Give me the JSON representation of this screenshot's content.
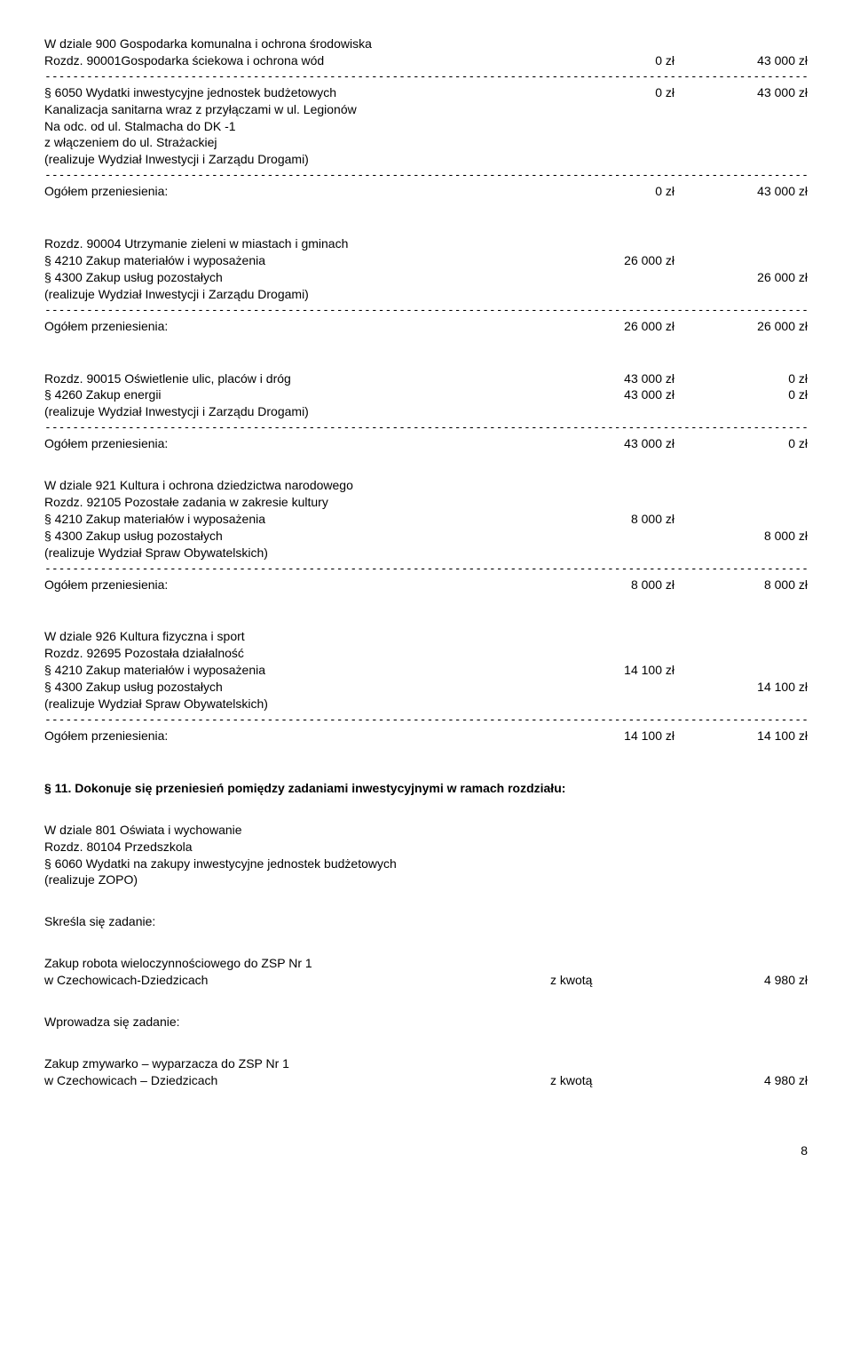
{
  "dash_line": "-----------------------------------------------------------------------------------------------------------------------------------",
  "s1": {
    "title1": "W dziale 900 Gospodarka komunalna i ochrona środowiska",
    "row1_l": "Rozdz. 90001Gospodarka ściekowa i ochrona wód",
    "row1_m": "0 zł",
    "row1_r": "43 000 zł",
    "row2_l": "§ 6050 Wydatki inwestycyjne jednostek budżetowych",
    "row2_m": "0 zł",
    "row2_r": "43 000 zł",
    "l3": "Kanalizacja sanitarna wraz z przyłączami w ul. Legionów",
    "l4": "Na odc. od ul. Stalmacha do DK -1",
    "l5": "z włączeniem do ul. Strażackiej",
    "l6": "(realizuje Wydział Inwestycji i Zarządu Drogami)",
    "total_l": "Ogółem przeniesienia:",
    "total_m": "0 zł",
    "total_r": "43 000 zł"
  },
  "s2": {
    "l1": "Rozdz. 90004 Utrzymanie zieleni w miastach i gminach",
    "row2_l": "§ 4210 Zakup materiałów i wyposażenia",
    "row2_m": "26 000 zł",
    "row3_l": "§ 4300 Zakup usług pozostałych",
    "row3_r": "26 000 zł",
    "l4": "(realizuje Wydział Inwestycji i Zarządu Drogami)",
    "total_l": "Ogółem przeniesienia:",
    "total_m": "26 000 zł",
    "total_r": "26 000 zł"
  },
  "s3": {
    "row1_l": "Rozdz. 90015 Oświetlenie ulic, placów i dróg",
    "row1_m": "43 000 zł",
    "row1_r": "0 zł",
    "row2_l": "§ 4260 Zakup energii",
    "row2_m": "43 000 zł",
    "row2_r": "0 zł",
    "l3": "(realizuje Wydział Inwestycji i Zarządu Drogami)",
    "total_l": "Ogółem przeniesienia:",
    "total_m": "43 000 zł",
    "total_r": "0 zł"
  },
  "s4": {
    "l1": "W dziale 921 Kultura i ochrona dziedzictwa narodowego",
    "l2": "Rozdz. 92105 Pozostałe zadania w zakresie kultury",
    "row3_l": "§ 4210 Zakup materiałów i wyposażenia",
    "row3_m": "8 000 zł",
    "row4_l": "§ 4300 Zakup usług pozostałych",
    "row4_r": "8 000 zł",
    "l5": "(realizuje Wydział Spraw Obywatelskich)",
    "total_l": "Ogółem przeniesienia:",
    "total_m": "8 000 zł",
    "total_r": "8 000 zł"
  },
  "s5": {
    "l1": "W dziale 926 Kultura fizyczna i sport",
    "l2": "Rozdz. 92695 Pozostała działalność",
    "row3_l": "§ 4210 Zakup materiałów i wyposażenia",
    "row3_m": "14 100 zł",
    "row4_l": "§ 4300 Zakup usług pozostałych",
    "row4_r": "14 100 zł",
    "l5": "(realizuje Wydział Spraw Obywatelskich)",
    "total_l": "Ogółem przeniesienia:",
    "total_m": "14 100 zł",
    "total_r": "14 100 zł"
  },
  "s6": {
    "p11": "§ 11.  Dokonuje się przeniesień pomiędzy zadaniami inwestycyjnymi w ramach rozdziału:",
    "l1": "W dziale 801 Oświata i wychowanie",
    "l2": "Rozdz. 80104 Przedszkola",
    "l3": "§ 6060 Wydatki na zakupy inwestycyjne jednostek budżetowych",
    "l4": "(realizuje ZOPO)",
    "skresla": "Skreśla się zadanie:",
    "z1a": "Zakup robota wieloczynnościowego do ZSP Nr 1",
    "z1b_l": "w Czechowicach-Dziedzicach",
    "z1b_m": "z kwotą",
    "z1b_r": "4 980 zł",
    "wprowadza": "Wprowadza się zadanie:",
    "z2a": "Zakup zmywarko – wyparzacza do ZSP Nr 1",
    "z2b_l": "w Czechowicach – Dziedzicach",
    "z2b_m": "z kwotą",
    "z2b_r": "4 980 zł"
  },
  "page": "8"
}
